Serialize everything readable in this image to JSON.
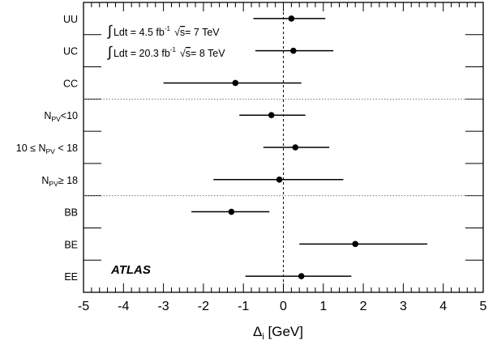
{
  "chart_data": {
    "type": "scatter",
    "title": "",
    "xlabel": "Δ",
    "xlabel_sub": "i",
    "xlabel_unit": " [GeV]",
    "xlim": [
      -5,
      5
    ],
    "x_ticks": [
      "-5",
      "-4",
      "-3",
      "-2",
      "-1",
      "0",
      "1",
      "2",
      "3",
      "4",
      "5"
    ],
    "grid": false,
    "reference_line_x": 0,
    "categories": [
      {
        "pre": "UU",
        "sub": "",
        "post": ""
      },
      {
        "pre": "UC",
        "sub": "",
        "post": ""
      },
      {
        "pre": "CC",
        "sub": "",
        "post": ""
      },
      {
        "pre": "N",
        "sub": "PV",
        "post": "<10"
      },
      {
        "pre": "10 ≤ N",
        "sub": "PV",
        "post": " < 18"
      },
      {
        "pre": "N",
        "sub": "PV",
        "post": "≥ 18"
      },
      {
        "pre": "BB",
        "sub": "",
        "post": ""
      },
      {
        "pre": "BE",
        "sub": "",
        "post": ""
      },
      {
        "pre": "EE",
        "sub": "",
        "post": ""
      }
    ],
    "points": [
      {
        "value": 0.2,
        "low": -0.75,
        "high": 1.05
      },
      {
        "value": 0.25,
        "low": -0.7,
        "high": 1.25
      },
      {
        "value": -1.2,
        "low": -3.0,
        "high": 0.45
      },
      {
        "value": -0.3,
        "low": -1.1,
        "high": 0.55
      },
      {
        "value": 0.3,
        "low": -0.5,
        "high": 1.15
      },
      {
        "value": -0.1,
        "low": -1.75,
        "high": 1.5
      },
      {
        "value": -1.3,
        "low": -2.3,
        "high": -0.35
      },
      {
        "value": 1.8,
        "low": 0.4,
        "high": 3.6
      },
      {
        "value": 0.45,
        "low": -0.95,
        "high": 1.7
      }
    ],
    "group_separators_after": [
      2,
      5
    ],
    "annotations": {
      "lumi_7tev": {
        "integral": "∫",
        "text": "Ldt = 4.5 fb",
        "sup": "-1",
        "root": "√",
        "s": "s",
        "tail": "= 7 TeV"
      },
      "lumi_8tev": {
        "integral": "∫",
        "text": "Ldt = 20.3 fb",
        "sup": "-1",
        "root": "√",
        "s": "s",
        "tail": "= 8 TeV"
      },
      "experiment": "ATLAS"
    }
  }
}
